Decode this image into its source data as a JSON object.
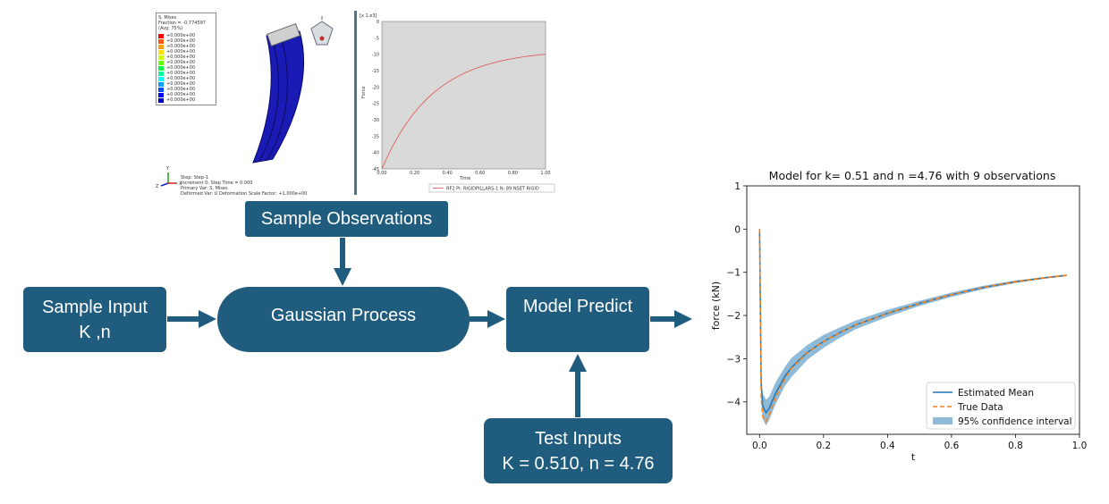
{
  "flow": {
    "sample_observations": "Sample Observations",
    "sample_input_line1": "Sample Input",
    "sample_input_line2": "K ,n",
    "gaussian_process": "Gaussian Process",
    "model_predict": "Model Predict",
    "test_inputs_line1": "Test Inputs",
    "test_inputs_line2": "K = 0.510, n = 4.76",
    "colors": {
      "box": "#1f5c7e"
    }
  },
  "fea_image": {
    "legend_header": [
      "S, Mises",
      "Fraction = -0.774597",
      "(Avg: 75%)"
    ],
    "legend_values": [
      "+0.000e+00",
      "+0.000e+00",
      "+0.000e+00",
      "+0.000e+00",
      "+0.000e+00",
      "+0.000e+00",
      "+0.000e+00",
      "+0.000e+00",
      "+0.000e+00",
      "+0.000e+00",
      "+0.000e+00",
      "+0.000e+00",
      "+0.000e+00"
    ],
    "legend_colors": [
      "#ff0000",
      "#ff5a00",
      "#ffa000",
      "#ffe000",
      "#c8ff00",
      "#64ff00",
      "#00ff40",
      "#00ffa0",
      "#00ffff",
      "#00a0ff",
      "#0050ff",
      "#0000ff",
      "#0000c8"
    ],
    "step_line1": "Step: Step-1",
    "step_line2": "Increment    0: Step Time =    0.000",
    "step_line3": "Primary Var: S, Mises",
    "step_line4": "Deformed Var: U   Deformation Scale Factor: +1.000e+00",
    "axis_y": "Y",
    "axis_z": "Z",
    "axis_x": "X"
  },
  "abaqus_plot": {
    "multiplier": "[x 1.e3]",
    "ylabel": "Force",
    "xlabel": "Time",
    "yticks": [
      "0",
      "-5",
      "-10",
      "-15",
      "-20",
      "-25",
      "-30",
      "-35",
      "-40",
      "-45"
    ],
    "xticks": [
      "0.00",
      "0.20",
      "0.40",
      "0.60",
      "0.80",
      "1.00"
    ],
    "legend": "RF2 PI: RIGIDPILLARS-1 N: 89 NSET RIGID",
    "colors": {
      "background": "#d9d9d9",
      "line": "#e05050"
    }
  },
  "chart_data": {
    "type": "line",
    "title": "Model for k= 0.51 and n =4.76 with 9 observations",
    "xlabel": "t",
    "ylabel": "force (kN)",
    "xlim": [
      -0.04,
      1.0
    ],
    "ylim": [
      -4.75,
      1.0
    ],
    "xticks": [
      0.0,
      0.2,
      0.4,
      0.6,
      0.8,
      1.0
    ],
    "yticks": [
      1,
      0,
      -1,
      -2,
      -3,
      -4
    ],
    "legend_position": "lower-right",
    "series": [
      {
        "name": "Estimated Mean",
        "style": "solid",
        "color": "#1f77b4",
        "x": [
          0.0,
          0.005,
          0.01,
          0.02,
          0.03,
          0.05,
          0.08,
          0.1,
          0.15,
          0.2,
          0.25,
          0.3,
          0.4,
          0.5,
          0.6,
          0.7,
          0.8,
          0.9,
          0.96
        ],
        "y": [
          0.0,
          -3.6,
          -4.1,
          -4.25,
          -4.15,
          -3.8,
          -3.4,
          -3.2,
          -2.85,
          -2.6,
          -2.4,
          -2.22,
          -1.95,
          -1.72,
          -1.52,
          -1.35,
          -1.22,
          -1.12,
          -1.07
        ]
      },
      {
        "name": "True Data",
        "style": "dashed",
        "color": "#ff7f0e",
        "x": [
          0.0,
          0.005,
          0.01,
          0.02,
          0.03,
          0.05,
          0.08,
          0.1,
          0.15,
          0.2,
          0.25,
          0.3,
          0.4,
          0.5,
          0.6,
          0.7,
          0.8,
          0.9,
          0.96
        ],
        "y": [
          0.0,
          -3.9,
          -4.35,
          -4.45,
          -4.3,
          -3.9,
          -3.45,
          -3.22,
          -2.86,
          -2.6,
          -2.4,
          -2.22,
          -1.95,
          -1.72,
          -1.52,
          -1.35,
          -1.22,
          -1.12,
          -1.07
        ]
      }
    ],
    "band": {
      "name": "95% confidence interval",
      "color": "#1f77b4",
      "x": [
        0.0,
        0.005,
        0.01,
        0.02,
        0.03,
        0.05,
        0.08,
        0.1,
        0.15,
        0.2,
        0.25,
        0.3,
        0.4,
        0.5,
        0.6,
        0.7,
        0.8,
        0.9,
        0.96
      ],
      "lower": [
        -0.05,
        -3.9,
        -4.4,
        -4.55,
        -4.42,
        -4.05,
        -3.62,
        -3.42,
        -3.02,
        -2.75,
        -2.52,
        -2.32,
        -2.03,
        -1.78,
        -1.57,
        -1.39,
        -1.25,
        -1.14,
        -1.09
      ],
      "upper": [
        0.05,
        -3.3,
        -3.8,
        -3.95,
        -3.88,
        -3.55,
        -3.18,
        -2.98,
        -2.68,
        -2.45,
        -2.28,
        -2.12,
        -1.87,
        -1.66,
        -1.47,
        -1.31,
        -1.19,
        -1.1,
        -1.05
      ]
    }
  }
}
